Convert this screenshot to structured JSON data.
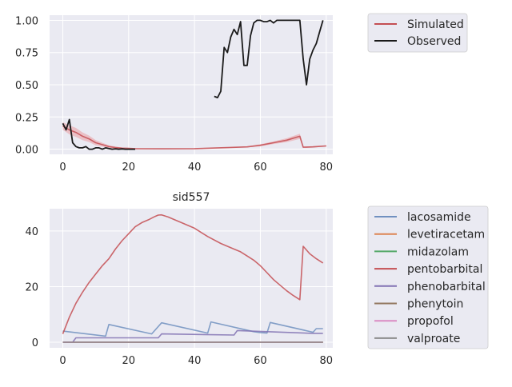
{
  "chart_data": [
    {
      "type": "line",
      "title": "",
      "xlabel": "",
      "ylabel": "",
      "xlim": [
        -4,
        82
      ],
      "ylim": [
        -0.04,
        1.04
      ],
      "xticks": [
        "0",
        "20",
        "40",
        "60",
        "80"
      ],
      "yticks": [
        "0.00",
        "0.25",
        "0.50",
        "0.75",
        "1.00"
      ],
      "grid": true,
      "legend_position": "outside-right",
      "series": [
        {
          "name": "Simulated",
          "color": "#c44e52",
          "band_color": "#e9a3a8",
          "x": [
            0,
            2,
            4,
            6,
            8,
            10,
            12,
            14,
            16,
            18,
            20,
            22,
            30,
            40,
            50,
            56,
            60,
            64,
            68,
            72,
            73,
            76,
            80
          ],
          "y": [
            0.18,
            0.15,
            0.13,
            0.1,
            0.08,
            0.05,
            0.035,
            0.02,
            0.012,
            0.008,
            0.006,
            0.004,
            0.003,
            0.004,
            0.012,
            0.018,
            0.03,
            0.05,
            0.07,
            0.1,
            0.015,
            0.018,
            0.025
          ],
          "band_spread": [
            0.03,
            0.035,
            0.035,
            0.03,
            0.025,
            0.02,
            0.015,
            0.01,
            0.008,
            0.005,
            0.004,
            0.003,
            0.002,
            0.002,
            0.003,
            0.004,
            0.008,
            0.01,
            0.015,
            0.02,
            0.005,
            0.005,
            0.005
          ]
        },
        {
          "name": "Observed",
          "color": "#1a1a1a",
          "segments": [
            {
              "x": [
                0,
                1,
                2,
                3,
                4,
                5,
                6,
                7,
                8,
                9,
                10,
                11,
                12,
                13,
                14,
                15,
                16,
                17,
                18,
                19,
                20,
                21,
                22
              ],
              "y": [
                0.2,
                0.15,
                0.23,
                0.05,
                0.02,
                0.01,
                0.01,
                0.02,
                0.0,
                0.0,
                0.01,
                0.01,
                0.0,
                0.01,
                0.005,
                0.0,
                0.003,
                0.0,
                0.002,
                0.0,
                0.0,
                0.0,
                0.0
              ]
            },
            {
              "x": [
                46,
                47,
                48,
                49,
                50,
                51,
                52,
                53,
                54,
                55,
                56,
                57,
                58,
                59,
                60,
                61,
                62,
                63,
                64,
                65,
                66,
                67,
                68,
                69,
                70,
                71,
                72,
                73,
                74,
                75,
                76,
                77,
                78,
                79
              ],
              "y": [
                0.41,
                0.4,
                0.45,
                0.79,
                0.75,
                0.87,
                0.93,
                0.89,
                0.99,
                0.65,
                0.65,
                0.88,
                0.98,
                1.0,
                1.0,
                0.99,
                0.99,
                1.0,
                0.98,
                1.0,
                1.0,
                1.0,
                1.0,
                1.0,
                1.0,
                1.0,
                1.0,
                0.7,
                0.5,
                0.7,
                0.77,
                0.82,
                0.91,
                1.0
              ]
            }
          ]
        }
      ]
    },
    {
      "type": "line",
      "title": "sid557",
      "xlabel": "",
      "ylabel": "",
      "xlim": [
        -4,
        82
      ],
      "ylim": [
        -2,
        48
      ],
      "xticks": [
        "0",
        "20",
        "40",
        "60",
        "80"
      ],
      "yticks": [
        "0",
        "20",
        "40"
      ],
      "grid": true,
      "legend_position": "outside-right",
      "series": [
        {
          "name": "lacosamide",
          "color": "#7090c0",
          "x": [
            0,
            13,
            14,
            27,
            30,
            44,
            45,
            58,
            60,
            62,
            63,
            76,
            77,
            79
          ],
          "y": [
            4.0,
            2.2,
            6.4,
            3.0,
            7.0,
            3.3,
            7.3,
            3.8,
            3.5,
            3.3,
            7.1,
            3.6,
            4.9,
            4.9
          ]
        },
        {
          "name": "levetiracetam",
          "color": "#dd8452",
          "x": [
            0,
            79
          ],
          "y": [
            0,
            0
          ]
        },
        {
          "name": "midazolam",
          "color": "#55a868",
          "x": [
            0,
            79
          ],
          "y": [
            0,
            0
          ]
        },
        {
          "name": "pentobarbital",
          "color": "#c44e52",
          "x": [
            0,
            2,
            4,
            6,
            8,
            10,
            12,
            14,
            16,
            18,
            20,
            22,
            24,
            26,
            28,
            29,
            30,
            32,
            34,
            36,
            38,
            40,
            44,
            48,
            52,
            54,
            56,
            58,
            60,
            62,
            64,
            66,
            68,
            70,
            72,
            73,
            75,
            77,
            79
          ],
          "y": [
            3.0,
            9.0,
            14.0,
            18.0,
            21.5,
            24.5,
            27.5,
            30.0,
            33.5,
            36.5,
            39.0,
            41.5,
            43.0,
            44.0,
            45.2,
            45.7,
            45.8,
            45.0,
            44.0,
            43.0,
            42.0,
            41.0,
            38.0,
            35.5,
            33.5,
            32.5,
            31.0,
            29.5,
            27.5,
            25.0,
            22.5,
            20.5,
            18.5,
            16.8,
            15.3,
            34.5,
            31.8,
            30.0,
            28.5
          ]
        },
        {
          "name": "phenobarbital",
          "color": "#8172b3",
          "x": [
            0,
            3,
            4,
            29,
            30,
            52,
            53,
            76,
            79
          ],
          "y": [
            0,
            0,
            1.6,
            1.6,
            3.0,
            2.6,
            4.2,
            3.2,
            3.2
          ]
        },
        {
          "name": "phenytoin",
          "color": "#937860",
          "x": [
            0,
            79
          ],
          "y": [
            0,
            0
          ]
        },
        {
          "name": "propofol",
          "color": "#da8bc3",
          "x": [
            0,
            79
          ],
          "y": [
            0,
            0
          ]
        },
        {
          "name": "valproate",
          "color": "#8c8c8c",
          "x": [
            0,
            79
          ],
          "y": [
            0,
            0
          ]
        }
      ]
    }
  ]
}
